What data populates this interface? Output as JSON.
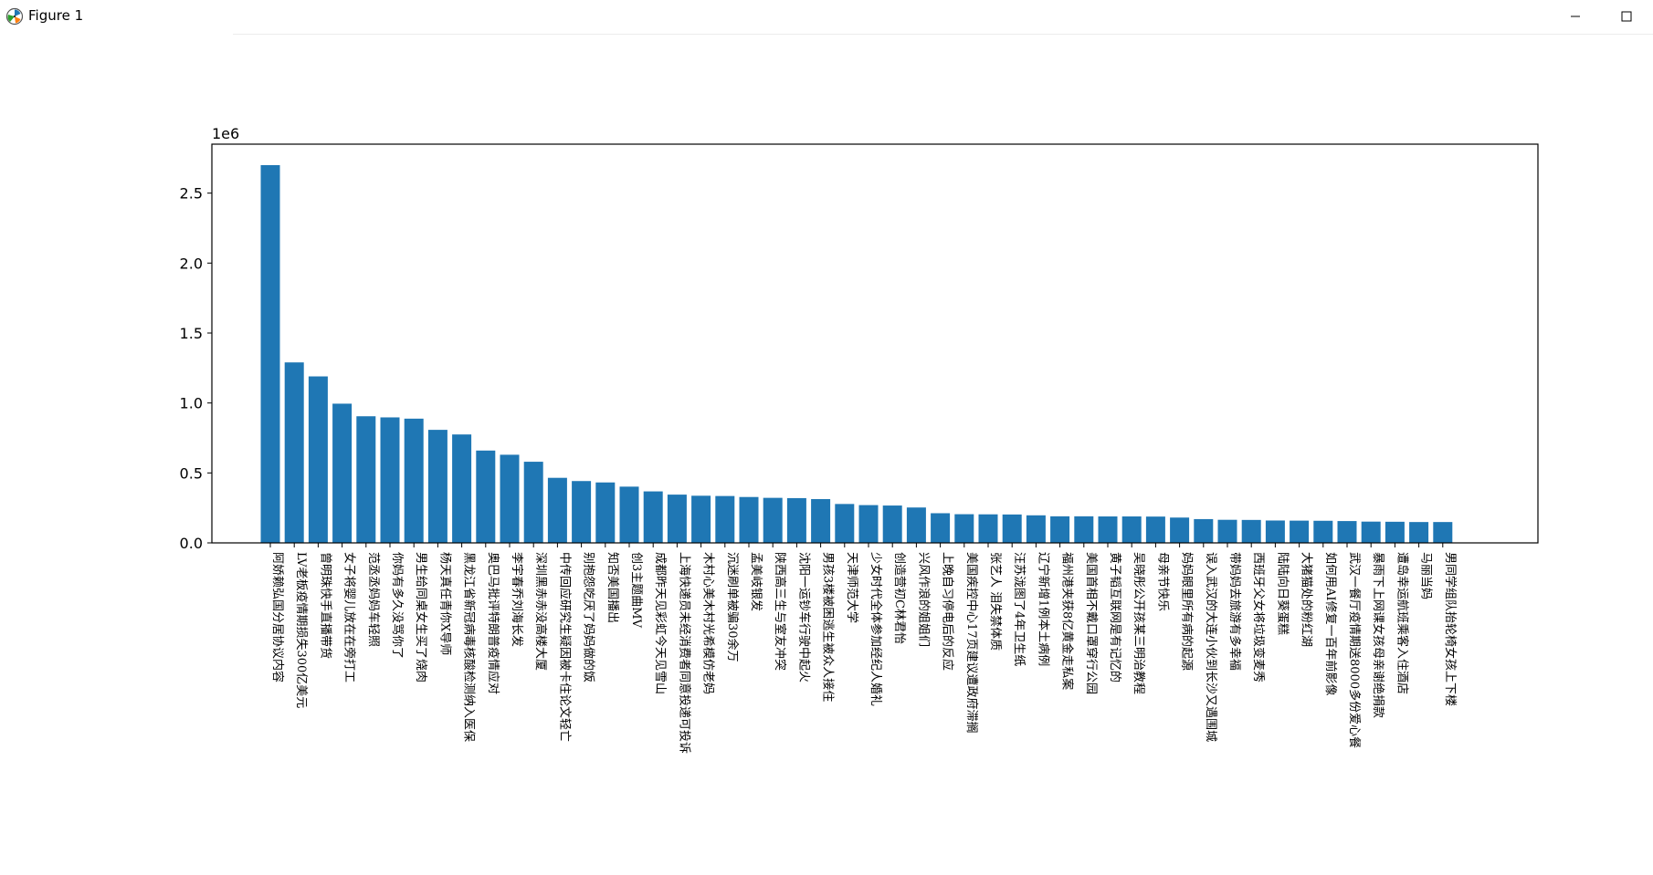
{
  "window": {
    "title": "Figure 1",
    "icon": "matplotlib-figure-icon",
    "controls": [
      "minimize-icon",
      "maximize-icon"
    ]
  },
  "chart_data": {
    "type": "bar",
    "offset_label": "1e6",
    "bar_color": "#1f77b4",
    "grid": false,
    "ylim": [
      0,
      2.85
    ],
    "y_ticks": [
      0.0,
      0.5,
      1.0,
      1.5,
      2.0,
      2.5
    ],
    "y_tick_labels": [
      "0.0",
      "0.5",
      "1.0",
      "1.5",
      "2.0",
      "2.5"
    ],
    "categories": [
      "阿娇赖弘国分居协议内容",
      "LV老板疫情期损失300亿美元",
      "曾明珠快手直播带货",
      "女子将婴儿放在在旁打工",
      "范丞丞妈妈车轻照",
      "你妈有多久没骂你了",
      "男生给同桌女生买了烧肉",
      "杨天真任青你X导师",
      "黑龙江省新冠病毒核酸检测纳入医保",
      "奥巴马批评特朗普疫情应对",
      "李宇春乔刘海长发",
      "深圳黑赤赤没高楼大厦",
      "中传回应研究生疑因被卡住论文轻亡",
      "别抱怨吃厌了妈妈做的饭",
      "知否美国播出",
      "创3主题曲MV",
      "成都昨天见彩虹今天见雪山",
      "上海快递员未经消费者同意投递可投诉",
      "木村心美木村光希模仿老妈",
      "沉迷刷单被骗30余万",
      "孟美岐银发",
      "陕西高三生与室友冲突",
      "沈阳一运钞车行驶中起火",
      "男孩3楼被困逃生被众人接住",
      "天津师范大学",
      "少女时代全体参加经纪人婚礼",
      "创造营初C林君怡",
      "兴风作浪的姐姐们",
      "上晚自习停电后的反应",
      "美国疾控中心17页建议遭政府滞搁",
      "张艺人 泪失禁体质",
      "汪苏泷图了4年卫生纸",
      "辽宁新增1例本土病例",
      "福州港夹获8亿黄金走私案",
      "美国首相不戴口罩穿行公园",
      "黄子韬互联网是有记忆的",
      "吴晓彤公开孩某三明治教程",
      "母亲节快乐",
      "妈妈眼里所有病的起源",
      "误入武汉的大连小伙到长沙又遇围城",
      "带妈妈去旅游有多幸福",
      "西班牙父女将垃圾变麦秀",
      "陆陆向日葵蛋糕",
      "大猪猫处的粉红湖",
      "如何用AI修复一百年前影像",
      "武汉一餐厅疫情期送8000多份爱心餐",
      "暴雨下上网课女孩母亲谢绝捐款",
      "遭岛幸运航班乘客入住酒店",
      "马丽当妈",
      "男同学组队抬轮椅女孩上下楼"
    ],
    "values": [
      2700000,
      1290000,
      1190000,
      995000,
      905000,
      897000,
      888000,
      808000,
      775000,
      660000,
      630000,
      580000,
      465000,
      442000,
      432000,
      402000,
      368000,
      345000,
      337000,
      335000,
      328000,
      322000,
      320000,
      313000,
      278000,
      270000,
      267000,
      253000,
      212000,
      205000,
      204000,
      203000,
      197000,
      190000,
      190000,
      189000,
      189000,
      188000,
      181000,
      170000,
      165000,
      164000,
      160000,
      159000,
      158000,
      156000,
      152000,
      151000,
      149000,
      149000
    ],
    "xlabel": "",
    "ylabel": "",
    "title": ""
  }
}
